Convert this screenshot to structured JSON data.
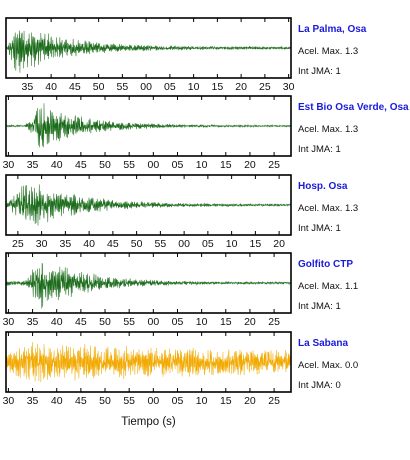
{
  "xlabel": "Tiempo (s)",
  "chart_data": [
    {
      "type": "line",
      "station": "La Palma, Osa",
      "acel": "Acel. Max. 1.3",
      "jma": "Int JMA: 1",
      "color": "#1a6b1a",
      "ticks": [
        "35",
        "40",
        "45",
        "50",
        "55",
        "00",
        "05",
        "10",
        "15",
        "20",
        "25",
        "30"
      ],
      "tick_seconds": [
        35,
        40,
        45,
        50,
        55,
        60,
        65,
        70,
        75,
        80,
        85,
        90
      ],
      "xlim": [
        30.5,
        90.5
      ],
      "onset": 30.8,
      "peak_time": 32.5,
      "amp": 1.0,
      "decay": 10,
      "floor": 0.05,
      "pre": 0.05,
      "seed": 11
    },
    {
      "type": "line",
      "station": "Est Bio Osa Verde, Osa",
      "acel": "Acel. Max. 1.3",
      "jma": "Int JMA: 1",
      "color": "#1a6b1a",
      "ticks": [
        "30",
        "35",
        "40",
        "45",
        "50",
        "55",
        "00",
        "05",
        "10",
        "15",
        "20",
        "25"
      ],
      "tick_seconds": [
        30,
        35,
        40,
        45,
        50,
        55,
        60,
        65,
        70,
        75,
        80,
        85
      ],
      "xlim": [
        29.5,
        88.5
      ],
      "onset": 33.5,
      "peak_time": 36.5,
      "amp": 0.9,
      "decay": 9,
      "floor": 0.03,
      "pre": 0.05,
      "seed": 23
    },
    {
      "type": "line",
      "station": "Hosp. Osa",
      "acel": "Acel. Max. 1.3",
      "jma": "Int JMA: 1",
      "color": "#1a6b1a",
      "ticks": [
        "25",
        "30",
        "35",
        "40",
        "45",
        "50",
        "55",
        "00",
        "05",
        "10",
        "15",
        "20"
      ],
      "tick_seconds": [
        25,
        30,
        35,
        40,
        45,
        50,
        55,
        60,
        65,
        70,
        75,
        80
      ],
      "xlim": [
        22.5,
        82.5
      ],
      "onset": 23,
      "peak_time": 27,
      "amp": 1.0,
      "decay": 10,
      "floor": 0.04,
      "pre": 0.1,
      "seed": 37
    },
    {
      "type": "line",
      "station": "Golfito CTP",
      "acel": "Acel. Max. 1.1",
      "jma": "Int JMA: 1",
      "color": "#1a6b1a",
      "ticks": [
        "30",
        "35",
        "40",
        "45",
        "50",
        "55",
        "00",
        "05",
        "10",
        "15",
        "20",
        "25"
      ],
      "tick_seconds": [
        30,
        35,
        40,
        45,
        50,
        55,
        60,
        65,
        70,
        75,
        80,
        85
      ],
      "xlim": [
        29.5,
        88.5
      ],
      "onset": 33.5,
      "peak_time": 37,
      "amp": 1.0,
      "decay": 9,
      "floor": 0.04,
      "pre": 0.1,
      "seed": 53
    },
    {
      "type": "line",
      "station": "La Sabana",
      "acel": "Acel. Max. 0.0",
      "jma": "Int JMA: 0",
      "color": "#f2a900",
      "ticks": [
        "30",
        "35",
        "40",
        "45",
        "50",
        "55",
        "00",
        "05",
        "10",
        "15",
        "20",
        "25"
      ],
      "tick_seconds": [
        30,
        35,
        40,
        45,
        50,
        55,
        60,
        65,
        70,
        75,
        80,
        85
      ],
      "xlim": [
        29.5,
        88.5
      ],
      "onset": 29.5,
      "peak_time": 35,
      "amp": 0.75,
      "decay": 60,
      "floor": 0.32,
      "pre": 0.5,
      "seed": 71
    }
  ]
}
